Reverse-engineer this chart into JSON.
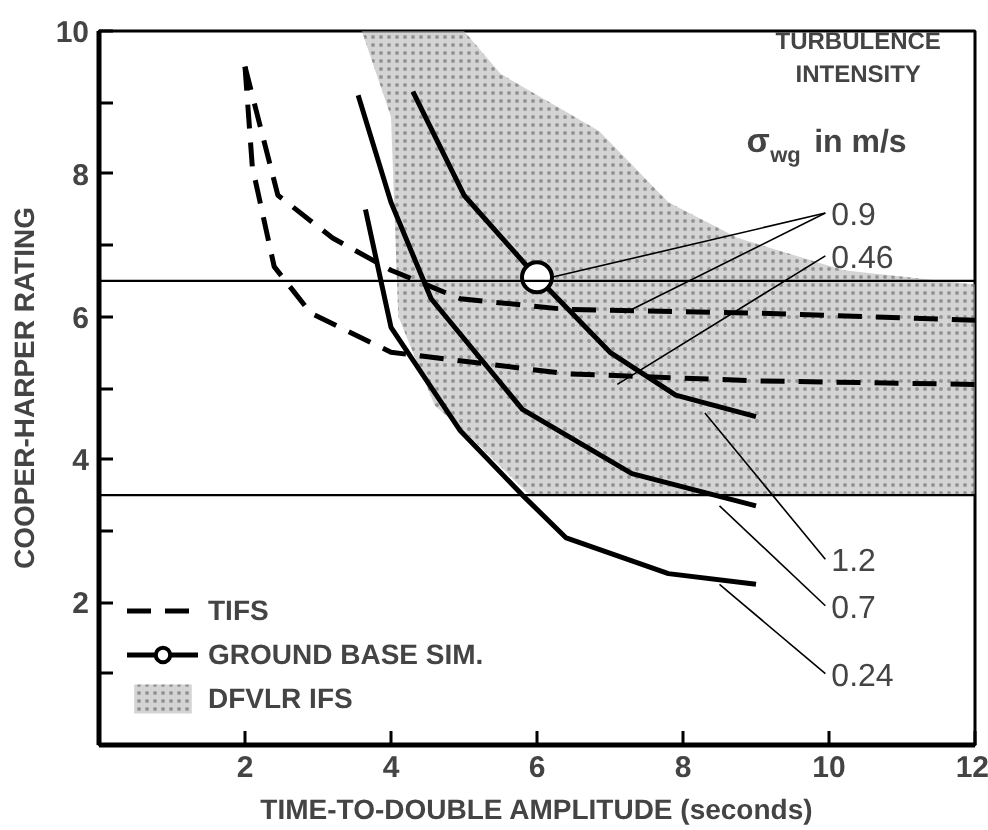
{
  "chart_data": {
    "type": "line",
    "xlabel": "TIME-TO-DOUBLE AMPLITUDE (seconds)",
    "ylabel": "COOPER-HARPER RATING",
    "xlim": [
      0,
      12
    ],
    "xticks": [
      2,
      4,
      6,
      8,
      10,
      12
    ],
    "ylim": [
      0,
      10
    ],
    "yticks": [
      {
        "value": 1,
        "label": null
      },
      2,
      {
        "value": 3,
        "label": null
      },
      4,
      {
        "value": 5,
        "label": null
      },
      6,
      {
        "value": 7,
        "label": null
      },
      8,
      {
        "value": 9,
        "label": null
      },
      10
    ],
    "grid": false,
    "legend": "bottom left",
    "series": [
      {
        "name": "TIFS",
        "color": "#000000",
        "line_style": "dashed",
        "x": [
          2.0,
          2.45,
          3.2,
          4.0,
          4.95,
          6.4,
          9.0,
          12.0
        ],
        "values": [
          9.5,
          7.7,
          7.1,
          6.65,
          6.25,
          6.1,
          6.05,
          5.95
        ]
      },
      {
        "color": "#000000",
        "line_style": "dashed",
        "x": [
          2.0,
          2.1,
          2.4,
          2.9,
          4.0,
          6.4,
          9.0,
          12.0
        ],
        "values": [
          9.5,
          8.1,
          6.7,
          6.05,
          5.5,
          5.2,
          5.1,
          5.05
        ]
      },
      {
        "color": "#000000",
        "line_style": "solid",
        "x": [
          4.3,
          5.0,
          6.0,
          7.0,
          7.9,
          9.0
        ],
        "values": [
          9.15,
          7.7,
          6.55,
          5.5,
          4.9,
          4.6
        ]
      },
      {
        "color": "#000000",
        "line_style": "solid",
        "x": [
          3.55,
          4.0,
          4.55,
          5.8,
          7.3,
          9.0
        ],
        "values": [
          9.1,
          7.6,
          6.25,
          4.7,
          3.8,
          3.35
        ]
      },
      {
        "color": "#000000",
        "line_style": "solid",
        "x": [
          3.65,
          4.0,
          4.95,
          5.8,
          6.4,
          7.8,
          9.0
        ],
        "values": [
          7.5,
          5.85,
          4.4,
          3.5,
          2.9,
          2.4,
          2.25
        ]
      },
      {
        "name": "GROUND BASE SIM.",
        "type": "scatter",
        "marker": "circle",
        "color": "#000000",
        "x": [
          6.0
        ],
        "values": [
          6.55
        ]
      },
      {
        "name": "DFVLR IFS",
        "type": "area",
        "color": "#b0b0b0",
        "x": [
          3.6,
          5.0,
          5.5,
          6.85,
          7.8,
          8.75,
          10.2,
          12.0,
          12.0,
          5.9,
          5.5,
          5.0,
          4.6,
          4.1,
          4.0
        ],
        "values": [
          10,
          10,
          9.4,
          8.6,
          7.6,
          7.1,
          6.65,
          6.45,
          3.5,
          3.5,
          3.9,
          4.4,
          4.75,
          6.0,
          8.8
        ]
      }
    ],
    "ref_lines": [
      {
        "axis": "y",
        "value": 6.5,
        "color": "#000000"
      },
      {
        "axis": "y",
        "value": 3.5,
        "color": "#000000"
      }
    ],
    "annotations": [
      {
        "text": "0.9",
        "x": 7.2,
        "y": 6.05
      },
      {
        "text": "0.46",
        "x": 7.1,
        "y": 5.05
      },
      {
        "text": "1.2",
        "x": 8.3,
        "y": 4.65
      },
      {
        "text": "0.7",
        "x": 8.5,
        "y": 3.35
      },
      {
        "text": "0.24",
        "x": 8.5,
        "y": 2.25
      },
      "TURBULENCE INTENSITY",
      "σ$_{wg}$ in m/s"
    ]
  }
}
